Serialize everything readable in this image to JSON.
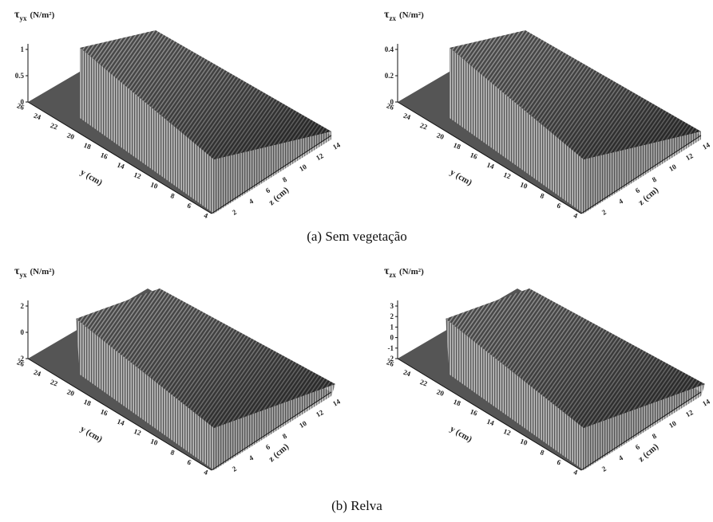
{
  "panels": [
    {
      "z_axis": {
        "symbol": "τ",
        "subscript": "yx",
        "unit": "(N/m²)"
      },
      "z_ticks": [
        "1",
        "0.5",
        "0"
      ],
      "y_label": "y (cm)",
      "x_label": "z (cm)",
      "y_ticks": [
        "26",
        "24",
        "22",
        "20",
        "18",
        "16",
        "14",
        "12",
        "10",
        "8",
        "6",
        "4"
      ],
      "x_ticks": [
        "2",
        "4",
        "6",
        "8",
        "10",
        "12",
        "14"
      ]
    },
    {
      "z_axis": {
        "symbol": "τ",
        "subscript": "zx",
        "unit": "(N/m²)"
      },
      "z_ticks": [
        "0.4",
        "0.2",
        "0"
      ],
      "y_label": "y (cm)",
      "x_label": "z (cm)",
      "y_ticks": [
        "26",
        "24",
        "22",
        "20",
        "18",
        "16",
        "14",
        "12",
        "10",
        "8",
        "6",
        "4"
      ],
      "x_ticks": [
        "2",
        "4",
        "6",
        "8",
        "10",
        "12",
        "14"
      ]
    },
    {
      "z_axis": {
        "symbol": "τ",
        "subscript": "yx",
        "unit": "(N/m²)"
      },
      "z_ticks": [
        "2",
        "0",
        "-2"
      ],
      "y_label": "y (cm)",
      "x_label": "z (cm)",
      "y_ticks": [
        "26",
        "24",
        "22",
        "20",
        "18",
        "16",
        "14",
        "12",
        "10",
        "8",
        "6",
        "4"
      ],
      "x_ticks": [
        "2",
        "4",
        "6",
        "8",
        "10",
        "12",
        "14"
      ]
    },
    {
      "z_axis": {
        "symbol": "τ",
        "subscript": "zx",
        "unit": "(N/m²)"
      },
      "z_ticks": [
        "3",
        "2",
        "1",
        "0",
        "-1",
        "-2"
      ],
      "y_label": "y (cm)",
      "x_label": "z (cm)",
      "y_ticks": [
        "26",
        "24",
        "22",
        "20",
        "18",
        "16",
        "14",
        "12",
        "10",
        "8",
        "6",
        "4"
      ],
      "x_ticks": [
        "2",
        "4",
        "6",
        "8",
        "10",
        "12",
        "14"
      ]
    }
  ],
  "captions": [
    "(a) Sem vegetação",
    "(b) Relva"
  ]
}
